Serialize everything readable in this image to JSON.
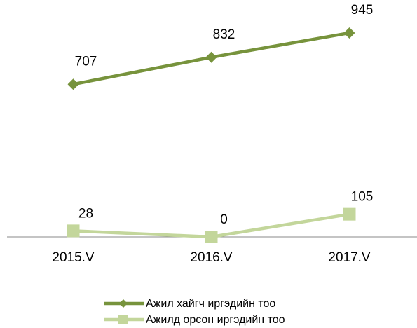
{
  "chart_data": {
    "type": "line",
    "categories": [
      "2015.V",
      "2016.V",
      "2017.V"
    ],
    "series": [
      {
        "name": "Ажил хайгч иргэдийн тоо",
        "color": "#77933c",
        "marker": "diamond",
        "values": [
          707,
          832,
          945
        ]
      },
      {
        "name": "Ажилд орсон иргэдийн тоо",
        "color": "#c3d69b",
        "marker": "square",
        "values": [
          28,
          0,
          105
        ]
      }
    ],
    "ylim": [
      0,
      1000
    ],
    "legend": "bottom"
  }
}
